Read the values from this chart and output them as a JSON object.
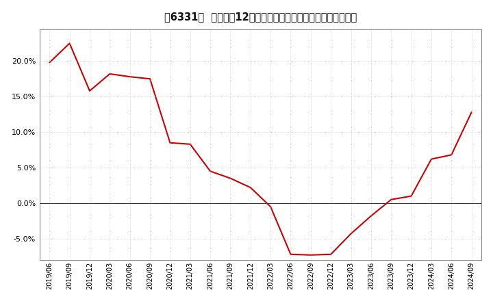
{
  "title": "[挱]  売上高の12か月移動合計の対前年同期増減率の推移",
  "title_prefix": "[6331]",
  "title_main": "売上高の12か月移動合計の対前年同期増減率の推移",
  "line_color": "#cc0000",
  "background_color": "#ffffff",
  "grid_color": "#bbbbbb",
  "yticks": [
    -0.05,
    0.0,
    0.05,
    0.1,
    0.15,
    0.2
  ],
  "ylim": [
    -0.08,
    0.245
  ],
  "dates": [
    "2019/06",
    "2019/09",
    "2019/12",
    "2020/03",
    "2020/06",
    "2020/09",
    "2020/12",
    "2021/03",
    "2021/06",
    "2021/09",
    "2021/12",
    "2022/03",
    "2022/06",
    "2022/09",
    "2022/12",
    "2023/03",
    "2023/06",
    "2023/09",
    "2023/12",
    "2024/03",
    "2024/06",
    "2024/09"
  ],
  "values": [
    0.198,
    0.225,
    0.158,
    0.182,
    0.178,
    0.175,
    0.085,
    0.083,
    0.045,
    0.035,
    0.022,
    -0.005,
    -0.072,
    -0.073,
    -0.072,
    -0.043,
    -0.018,
    0.005,
    0.01,
    0.062,
    0.068,
    0.128
  ]
}
